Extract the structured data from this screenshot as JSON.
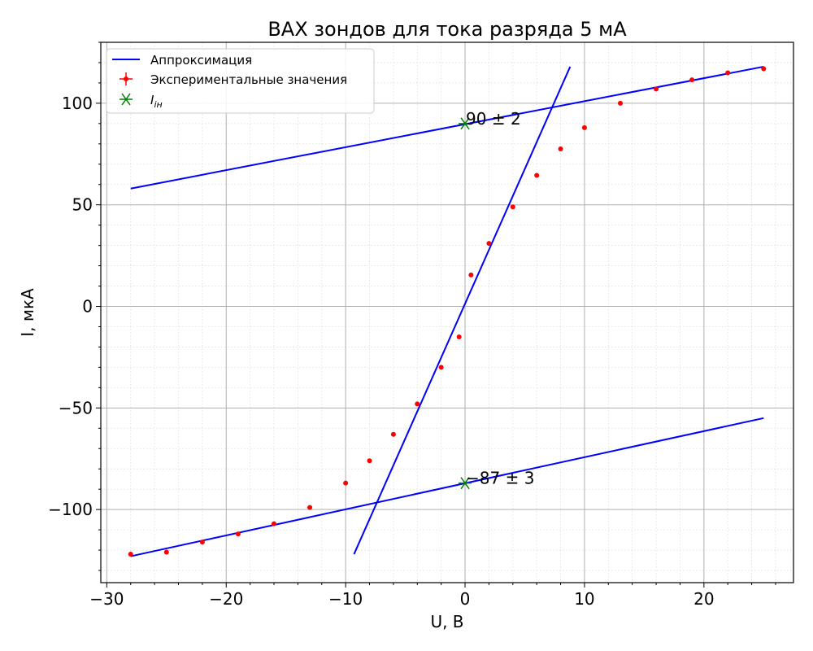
{
  "chart_data": {
    "type": "scatter",
    "title": "ВАХ зондов для тока разряда 5 мА",
    "xlabel": "U, В",
    "ylabel": "I, мкА",
    "xlim": [
      -30.5,
      27.5
    ],
    "ylim": [
      -136,
      130
    ],
    "xticks": [
      -30,
      -20,
      -10,
      0,
      10,
      20
    ],
    "yticks": [
      -100,
      -50,
      0,
      50,
      100
    ],
    "xtick_labels": [
      "−30",
      "−20",
      "−10",
      "0",
      "10",
      "20"
    ],
    "ytick_labels": [
      "−100",
      "−50",
      "0",
      "50",
      "100"
    ],
    "grid": true,
    "minor_grid": true,
    "legend_position": "upper-left",
    "colors": {
      "fit": "#0000ff",
      "experimental": "#ff0000",
      "ion_current": "#008000"
    },
    "series": [
      {
        "name": "Аппроксимация",
        "kind": "line",
        "segments": [
          {
            "x": [
              -28,
              25
            ],
            "y": [
              -123,
              -55
            ]
          },
          {
            "x": [
              -9.3,
              8.8
            ],
            "y": [
              -122,
              118
            ]
          },
          {
            "x": [
              -28,
              25
            ],
            "y": [
              58,
              118
            ]
          }
        ]
      },
      {
        "name": "Экспериментальные значения",
        "kind": "scatter",
        "x": [
          -28,
          -25,
          -22,
          -19,
          -16,
          -13,
          -10,
          -8,
          -6,
          -4,
          -2,
          -0.5,
          0.5,
          2,
          4,
          6,
          8,
          10,
          13,
          16,
          19,
          22,
          25
        ],
        "y": [
          -122,
          -121,
          -116,
          -112,
          -107,
          -99,
          -87,
          -76,
          -63,
          -48,
          -30,
          -15,
          15.5,
          31,
          49,
          64.5,
          77.5,
          88,
          100,
          107,
          111.5,
          115,
          117
        ]
      },
      {
        "name": "I_iн",
        "legend_label": "Iiн",
        "kind": "marker",
        "x": [
          0,
          0
        ],
        "y": [
          90,
          -87
        ]
      }
    ],
    "annotations": [
      {
        "text": "90 ± 2",
        "x": 0,
        "y": 90
      },
      {
        "text": "−87 ± 3",
        "x": 0,
        "y": -87
      }
    ]
  }
}
